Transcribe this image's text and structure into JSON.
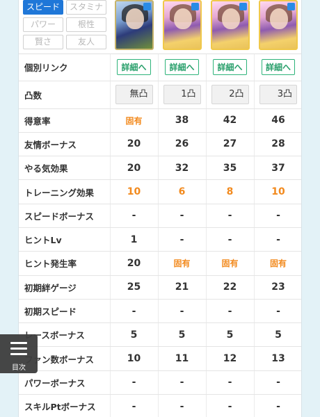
{
  "filters": [
    "スピード",
    "スタミナ",
    "パワー",
    "根性",
    "賢さ",
    "友人"
  ],
  "active_filter_index": 0,
  "link_row_label": "個別リンク",
  "link_button_label": "詳細へ",
  "uncap_row_label": "凸数",
  "uncap_levels": [
    "無凸",
    "1凸",
    "2凸",
    "3凸"
  ],
  "stats": [
    {
      "label": "得意率",
      "values": [
        "固有",
        "38",
        "42",
        "46"
      ]
    },
    {
      "label": "友情ボーナス",
      "values": [
        "20",
        "26",
        "27",
        "28"
      ]
    },
    {
      "label": "やる気効果",
      "values": [
        "20",
        "32",
        "35",
        "37"
      ]
    },
    {
      "label": "トレーニング効果",
      "values": [
        "10",
        "6",
        "8",
        "10"
      ]
    },
    {
      "label": "スピードボーナス",
      "values": [
        "-",
        "-",
        "-",
        "-"
      ]
    },
    {
      "label": "ヒントLv",
      "values": [
        "1",
        "-",
        "-",
        "-"
      ]
    },
    {
      "label": "ヒント発生率",
      "values": [
        "20",
        "固有",
        "固有",
        "固有"
      ]
    },
    {
      "label": "初期絆ゲージ",
      "values": [
        "25",
        "21",
        "22",
        "23"
      ]
    },
    {
      "label": "初期スピード",
      "values": [
        "-",
        "-",
        "-",
        "-"
      ]
    },
    {
      "label": "レースボーナス",
      "values": [
        "5",
        "5",
        "5",
        "5"
      ]
    },
    {
      "label": "ファン数ボーナス",
      "values": [
        "10",
        "11",
        "12",
        "13"
      ]
    },
    {
      "label": "パワーボーナス",
      "values": [
        "-",
        "-",
        "-",
        "-"
      ]
    },
    {
      "label": "スキルPtボーナス",
      "values": [
        "-",
        "-",
        "-",
        "-"
      ]
    }
  ],
  "highlight_cells": [
    [
      0,
      0
    ],
    [
      3,
      0
    ],
    [
      3,
      1
    ],
    [
      3,
      2
    ],
    [
      3,
      3
    ],
    [
      6,
      1
    ],
    [
      6,
      2
    ],
    [
      6,
      3
    ]
  ],
  "colors": {
    "active_filter": "#1f77d8",
    "link": "#2aa06c",
    "highlight": "#f28a1e"
  },
  "toc": {
    "label": "目次",
    "icon": "hamburger-menu-icon"
  }
}
